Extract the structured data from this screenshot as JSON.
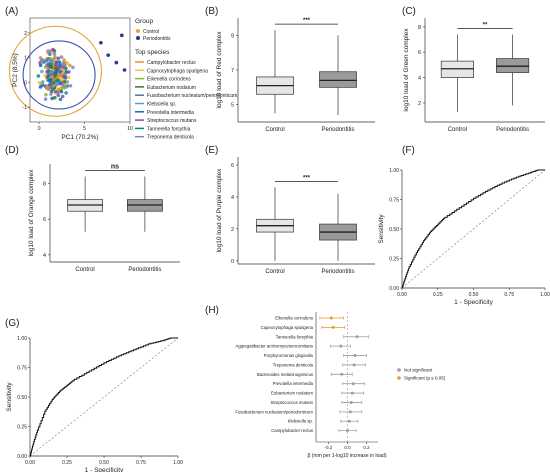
{
  "chart_data": [
    {
      "panel": "(A)",
      "type": "scatter",
      "xlabel": "PC1 (70.2%)",
      "ylabel": "PC2 (8.5%)",
      "xticks": [
        "0",
        "5",
        "10"
      ],
      "yticks": [
        "2",
        "1",
        "0",
        "-1"
      ],
      "xlim": [
        -1,
        10
      ],
      "ylim": [
        -1.6,
        2.6
      ],
      "legend_group_title": "Group",
      "groups": [
        {
          "name": "Control",
          "color": "#e8a33d"
        },
        {
          "name": "Periodontitis",
          "color": "#1f3a93"
        }
      ],
      "legend_species_title": "Top species",
      "species": [
        {
          "name": "Campylobacter rectus",
          "color": "#f28c28"
        },
        {
          "name": "Capnocytophaga sputigena",
          "color": "#f4c430"
        },
        {
          "name": "Eikenella corrodens",
          "color": "#8ab833"
        },
        {
          "name": "Eubacterium nodatum",
          "color": "#2e7d32"
        },
        {
          "name": "Fusobacterium nucleatum/periodonticum",
          "color": "#4a6fa5"
        },
        {
          "name": "Klebsiella sp.",
          "color": "#5b9bd5"
        },
        {
          "name": "Prevotella intermedia",
          "color": "#1565c0"
        },
        {
          "name": "Streptococcus mutans",
          "color": "#8e44ad"
        },
        {
          "name": "Tannerella forsythia",
          "color": "#00897b"
        },
        {
          "name": "Treponema denticola",
          "color": "#7986cb"
        }
      ],
      "ellipse_colors": [
        "#e8a33d",
        "#3f51b5"
      ]
    },
    {
      "panel": "(B)",
      "type": "box",
      "ylabel": "log10 load of Red complex",
      "categories": [
        "Control",
        "Periodontitis"
      ],
      "fills": [
        "#e6e6e6",
        "#9a9a9a"
      ],
      "ylim": [
        4,
        10
      ],
      "yticks": [
        5,
        7,
        9
      ],
      "boxes": [
        {
          "whisker_low": 4.5,
          "q1": 5.6,
          "median": 6.1,
          "q3": 6.6,
          "whisker_high": 9.3
        },
        {
          "whisker_low": 4.4,
          "q1": 6.0,
          "median": 6.4,
          "q3": 6.9,
          "whisker_high": 9.0
        }
      ],
      "significance": "***"
    },
    {
      "panel": "(C)",
      "type": "box",
      "ylabel": "log10 load of Green complex",
      "categories": [
        "Control",
        "Periodontitis"
      ],
      "fills": [
        "#e6e6e6",
        "#9a9a9a"
      ],
      "ylim": [
        0.5,
        8.7
      ],
      "yticks": [
        2,
        4,
        6,
        8
      ],
      "boxes": [
        {
          "whisker_low": 1.3,
          "q1": 4.0,
          "median": 4.7,
          "q3": 5.3,
          "whisker_high": 7.4
        },
        {
          "whisker_low": 1.8,
          "q1": 4.4,
          "median": 4.9,
          "q3": 5.5,
          "whisker_high": 7.4
        }
      ],
      "significance": "**"
    },
    {
      "panel": "(D)",
      "type": "box",
      "ylabel": "log10 load of Orange complex",
      "categories": [
        "Control",
        "Periodontitis"
      ],
      "fills": [
        "#e6e6e6",
        "#9a9a9a"
      ],
      "ylim": [
        3.6,
        9.1
      ],
      "yticks": [
        4,
        6,
        8
      ],
      "boxes": [
        {
          "whisker_low": 5.3,
          "q1": 6.45,
          "median": 6.8,
          "q3": 7.1,
          "whisker_high": 8.4
        },
        {
          "whisker_low": 5.3,
          "q1": 6.45,
          "median": 6.8,
          "q3": 7.1,
          "whisker_high": 8.4
        }
      ],
      "significance": "ns"
    },
    {
      "panel": "(E)",
      "type": "box",
      "ylabel": "log10 load of Purple complex",
      "categories": [
        "Control",
        "Periodontitis"
      ],
      "fills": [
        "#e6e6e6",
        "#9a9a9a"
      ],
      "ylim": [
        -0.2,
        6.5
      ],
      "yticks": [
        0,
        2,
        4,
        6
      ],
      "boxes": [
        {
          "whisker_low": 0.0,
          "q1": 1.8,
          "median": 2.2,
          "q3": 2.6,
          "whisker_high": 4.6
        },
        {
          "whisker_low": 0.0,
          "q1": 1.3,
          "median": 1.8,
          "q3": 2.3,
          "whisker_high": 4.2
        }
      ],
      "significance": "***"
    },
    {
      "panel": "(F)",
      "type": "line",
      "xlabel": "1 - Specificity",
      "ylabel": "Sensitivity",
      "xticks": [
        "0.00",
        "0.25",
        "0.50",
        "0.75",
        "1.00"
      ],
      "yticks": [
        "0.00",
        "0.25",
        "0.50",
        "0.75",
        "1.00"
      ],
      "xlim": [
        0,
        1
      ],
      "ylim": [
        0,
        1
      ],
      "roc": [
        [
          0,
          0
        ],
        [
          0.02,
          0.08
        ],
        [
          0.05,
          0.18
        ],
        [
          0.1,
          0.3
        ],
        [
          0.15,
          0.4
        ],
        [
          0.2,
          0.48
        ],
        [
          0.25,
          0.54
        ],
        [
          0.3,
          0.6
        ],
        [
          0.4,
          0.68
        ],
        [
          0.5,
          0.76
        ],
        [
          0.6,
          0.83
        ],
        [
          0.7,
          0.89
        ],
        [
          0.8,
          0.94
        ],
        [
          0.9,
          0.98
        ],
        [
          0.95,
          1.0
        ],
        [
          1,
          1
        ]
      ],
      "diagonal": true
    },
    {
      "panel": "(G)",
      "type": "line",
      "xlabel": "1 - Specificity",
      "ylabel": "Sensitivity",
      "xticks": [
        "0.00",
        "0.25",
        "0.50",
        "0.75",
        "1.00"
      ],
      "yticks": [
        "0.00",
        "0.25",
        "0.50",
        "0.75",
        "1.00"
      ],
      "xlim": [
        0,
        1
      ],
      "ylim": [
        0,
        1
      ],
      "roc": [
        [
          0,
          0
        ],
        [
          0.02,
          0.1
        ],
        [
          0.05,
          0.22
        ],
        [
          0.1,
          0.38
        ],
        [
          0.15,
          0.48
        ],
        [
          0.2,
          0.55
        ],
        [
          0.25,
          0.6
        ],
        [
          0.3,
          0.65
        ],
        [
          0.4,
          0.72
        ],
        [
          0.5,
          0.79
        ],
        [
          0.6,
          0.85
        ],
        [
          0.7,
          0.9
        ],
        [
          0.8,
          0.95
        ],
        [
          0.9,
          0.98
        ],
        [
          0.95,
          1.0
        ],
        [
          1,
          1
        ]
      ],
      "diagonal": true
    },
    {
      "panel": "(H)",
      "type": "scatter",
      "xlabel": "β (mm per 1-log10 increase in load)",
      "xticks": [
        "-0.2",
        "0.0",
        "0.2"
      ],
      "xlim": [
        -0.33,
        0.32
      ],
      "legend": [
        {
          "name": "Not significant",
          "color": "#9e9e9e"
        },
        {
          "name": "Significant (p ≤ 0.05)",
          "color": "#e69c24"
        }
      ],
      "rows": [
        {
          "name": "Eikenella corrodens",
          "beta": -0.17,
          "low": -0.29,
          "high": -0.04,
          "significant": true
        },
        {
          "name": "Capnocytophaga sputigena",
          "beta": -0.15,
          "low": -0.27,
          "high": -0.03,
          "significant": true
        },
        {
          "name": "Tannerella forsythia",
          "beta": 0.1,
          "low": -0.04,
          "high": 0.22,
          "significant": false
        },
        {
          "name": "Aggregatibacter actinomycetemcomitans",
          "beta": -0.07,
          "low": -0.18,
          "high": 0.03,
          "significant": false
        },
        {
          "name": "Porphyromonas gingivalis",
          "beta": 0.08,
          "low": -0.04,
          "high": 0.2,
          "significant": false
        },
        {
          "name": "Treponema denticola",
          "beta": 0.07,
          "low": -0.05,
          "high": 0.19,
          "significant": false
        },
        {
          "name": "Bacteroides melaninogenicus",
          "beta": -0.06,
          "low": -0.17,
          "high": 0.05,
          "significant": false
        },
        {
          "name": "Prevotella intermedia",
          "beta": 0.06,
          "low": -0.05,
          "high": 0.18,
          "significant": false
        },
        {
          "name": "Eubacterium nodatum",
          "beta": 0.05,
          "low": -0.06,
          "high": 0.17,
          "significant": false
        },
        {
          "name": "Streptococcus mutans",
          "beta": 0.04,
          "low": -0.06,
          "high": 0.15,
          "significant": false
        },
        {
          "name": "Fusobacterium nucleatum/periodonticum",
          "beta": 0.03,
          "low": -0.08,
          "high": 0.15,
          "significant": false
        },
        {
          "name": "Klebsiella sp.",
          "beta": 0.02,
          "low": -0.07,
          "high": 0.11,
          "significant": false
        },
        {
          "name": "Campylobacter rectus",
          "beta": 0.0,
          "low": -0.09,
          "high": 0.09,
          "significant": false
        }
      ]
    }
  ]
}
